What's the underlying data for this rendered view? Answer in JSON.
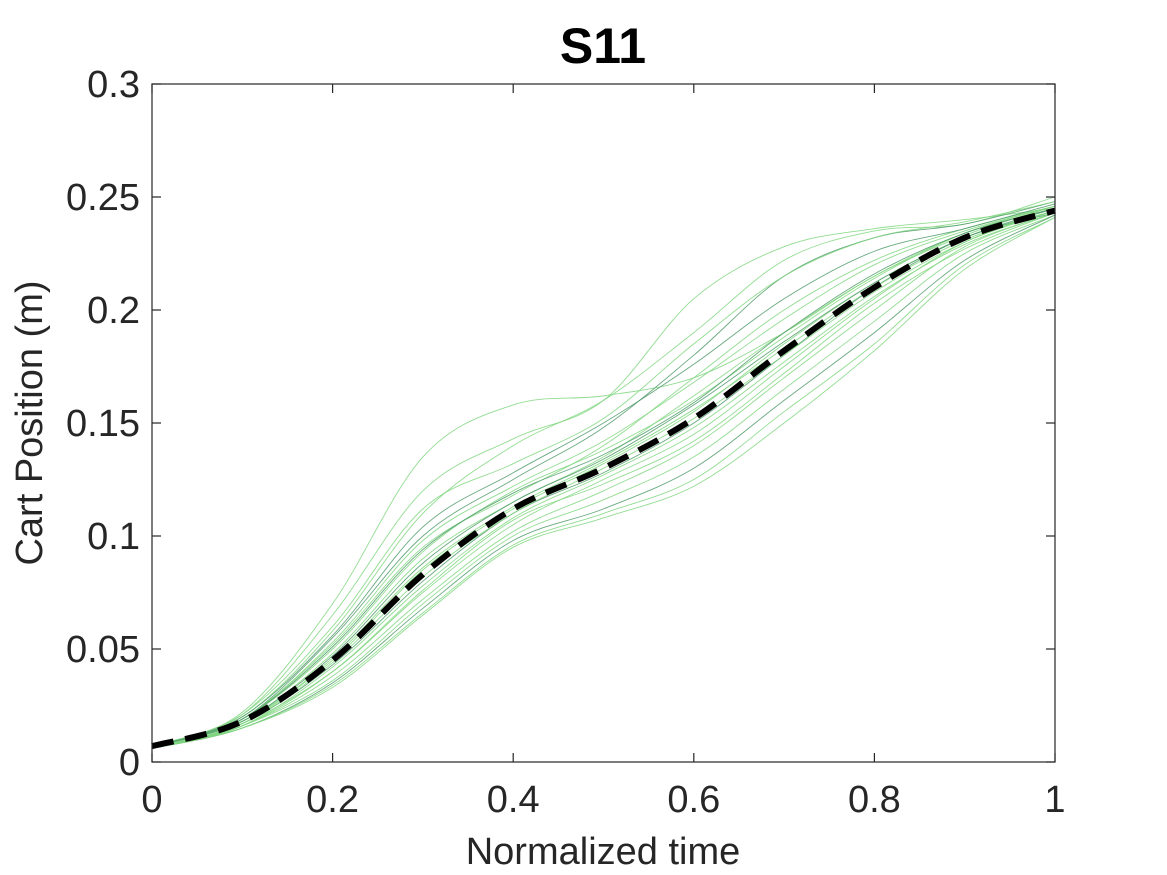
{
  "chart_data": {
    "type": "line",
    "title": "S11",
    "xlabel": "Normalized time",
    "ylabel": "Cart Position (m)",
    "xlim": [
      0,
      1
    ],
    "ylim": [
      0,
      0.3
    ],
    "xticks": [
      0,
      0.2,
      0.4,
      0.6,
      0.8,
      1
    ],
    "xtick_labels": [
      "0",
      "0.2",
      "0.4",
      "0.6",
      "0.8",
      "1"
    ],
    "yticks": [
      0,
      0.05,
      0.1,
      0.15,
      0.2,
      0.25,
      0.3
    ],
    "ytick_labels": [
      "0",
      "0.05",
      "0.1",
      "0.15",
      "0.2",
      "0.25",
      "0.3"
    ],
    "grid": false,
    "legend": "none",
    "colors": {
      "trials": "#7fd67f",
      "trials_dark": "#4f9a6a",
      "mean": "#000000",
      "axes": "#262626"
    },
    "x": [
      0,
      0.1,
      0.2,
      0.3,
      0.4,
      0.5,
      0.6,
      0.7,
      0.8,
      0.9,
      1
    ],
    "series": [
      {
        "style": "dashed-black",
        "values": [
          0.007,
          0.018,
          0.045,
          0.083,
          0.112,
          0.13,
          0.152,
          0.182,
          0.21,
          0.232,
          0.244
        ]
      },
      {
        "style": "thin-green",
        "values": [
          0.006,
          0.022,
          0.07,
          0.135,
          0.158,
          0.162,
          0.17,
          0.19,
          0.215,
          0.233,
          0.246
        ]
      },
      {
        "style": "thin-green",
        "values": [
          0.006,
          0.021,
          0.065,
          0.12,
          0.143,
          0.16,
          0.205,
          0.228,
          0.236,
          0.24,
          0.245
        ]
      },
      {
        "style": "thin-green",
        "values": [
          0.007,
          0.02,
          0.058,
          0.11,
          0.14,
          0.16,
          0.19,
          0.222,
          0.235,
          0.238,
          0.25
        ]
      },
      {
        "style": "thin-green",
        "values": [
          0.007,
          0.019,
          0.055,
          0.1,
          0.125,
          0.148,
          0.18,
          0.215,
          0.232,
          0.238,
          0.248
        ]
      },
      {
        "style": "thin-green",
        "values": [
          0.006,
          0.019,
          0.052,
          0.095,
          0.118,
          0.14,
          0.17,
          0.2,
          0.222,
          0.236,
          0.246
        ]
      },
      {
        "style": "thin-green",
        "values": [
          0.007,
          0.018,
          0.048,
          0.09,
          0.115,
          0.135,
          0.162,
          0.19,
          0.215,
          0.234,
          0.245
        ]
      },
      {
        "style": "thin-green",
        "values": [
          0.007,
          0.018,
          0.045,
          0.085,
          0.112,
          0.132,
          0.155,
          0.185,
          0.212,
          0.232,
          0.244
        ]
      },
      {
        "style": "thin-green",
        "values": [
          0.006,
          0.017,
          0.043,
          0.08,
          0.11,
          0.128,
          0.15,
          0.18,
          0.21,
          0.232,
          0.243
        ]
      },
      {
        "style": "thin-green",
        "values": [
          0.006,
          0.017,
          0.04,
          0.075,
          0.105,
          0.125,
          0.145,
          0.175,
          0.205,
          0.23,
          0.244
        ]
      },
      {
        "style": "thin-green",
        "values": [
          0.006,
          0.016,
          0.038,
          0.072,
          0.102,
          0.12,
          0.14,
          0.17,
          0.2,
          0.228,
          0.243
        ]
      },
      {
        "style": "thin-green",
        "values": [
          0.006,
          0.016,
          0.036,
          0.07,
          0.1,
          0.116,
          0.135,
          0.165,
          0.195,
          0.225,
          0.242
        ]
      },
      {
        "style": "thin-green",
        "values": [
          0.006,
          0.015,
          0.035,
          0.068,
          0.098,
          0.112,
          0.13,
          0.16,
          0.19,
          0.222,
          0.242
        ]
      },
      {
        "style": "thin-green",
        "values": [
          0.006,
          0.015,
          0.034,
          0.066,
          0.096,
          0.11,
          0.125,
          0.155,
          0.185,
          0.22,
          0.241
        ]
      },
      {
        "style": "thin-green",
        "values": [
          0.006,
          0.015,
          0.033,
          0.065,
          0.095,
          0.108,
          0.122,
          0.15,
          0.182,
          0.218,
          0.241
        ]
      },
      {
        "style": "thin-green",
        "values": [
          0.007,
          0.019,
          0.05,
          0.093,
          0.12,
          0.138,
          0.16,
          0.188,
          0.214,
          0.234,
          0.246
        ]
      },
      {
        "style": "thin-green",
        "values": [
          0.007,
          0.018,
          0.047,
          0.088,
          0.115,
          0.134,
          0.158,
          0.186,
          0.212,
          0.232,
          0.245
        ]
      },
      {
        "style": "thin-green",
        "values": [
          0.006,
          0.017,
          0.044,
          0.082,
          0.11,
          0.13,
          0.152,
          0.18,
          0.208,
          0.23,
          0.244
        ]
      },
      {
        "style": "thin-green",
        "values": [
          0.006,
          0.016,
          0.042,
          0.078,
          0.108,
          0.127,
          0.148,
          0.177,
          0.206,
          0.229,
          0.243
        ]
      },
      {
        "style": "thin-green",
        "values": [
          0.007,
          0.019,
          0.053,
          0.098,
          0.122,
          0.142,
          0.168,
          0.196,
          0.22,
          0.235,
          0.246
        ]
      },
      {
        "style": "thin-green",
        "values": [
          0.007,
          0.02,
          0.056,
          0.104,
          0.128,
          0.15,
          0.176,
          0.205,
          0.226,
          0.236,
          0.247
        ]
      },
      {
        "style": "thin-green",
        "values": [
          0.006,
          0.016,
          0.04,
          0.076,
          0.107,
          0.123,
          0.142,
          0.172,
          0.203,
          0.227,
          0.243
        ]
      },
      {
        "style": "thin-green",
        "values": [
          0.007,
          0.021,
          0.06,
          0.112,
          0.132,
          0.152,
          0.185,
          0.215,
          0.232,
          0.239,
          0.248
        ]
      },
      {
        "style": "thin-green",
        "values": [
          0.006,
          0.017,
          0.046,
          0.086,
          0.113,
          0.133,
          0.156,
          0.183,
          0.21,
          0.231,
          0.244
        ]
      },
      {
        "style": "thin-green",
        "values": [
          0.007,
          0.019,
          0.051,
          0.094,
          0.119,
          0.136,
          0.159,
          0.19,
          0.216,
          0.234,
          0.245
        ]
      }
    ]
  }
}
